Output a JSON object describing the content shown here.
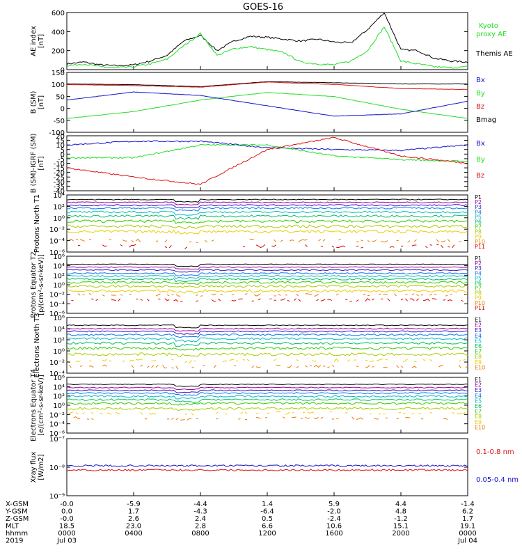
{
  "title": "GOES-16",
  "colors": {
    "black": "#000000",
    "green": "#22dd22",
    "red": "#dd1111",
    "blue": "#1111cc",
    "p": [
      "#000000",
      "#990099",
      "#3311cc",
      "#1177ee",
      "#00bbbb",
      "#00bb66",
      "#33cc00",
      "#aacc00",
      "#eecc00",
      "#ee7700",
      "#dd0000"
    ]
  },
  "x_axis": {
    "hhmm": [
      "0000",
      "0400",
      "0800",
      "1200",
      "1600",
      "2000",
      "0000"
    ],
    "rows": [
      {
        "label": "X-GSM",
        "values": [
          "-0.0",
          "-5.9",
          "-4.4",
          "1.4",
          "5.9",
          "4.4",
          "-1.4"
        ]
      },
      {
        "label": "Y-GSM",
        "values": [
          "0.0",
          "1.7",
          "-4.3",
          "-6.4",
          "-2.0",
          "4.8",
          "6.2"
        ]
      },
      {
        "label": "Z-GSM",
        "values": [
          "-0.0",
          "2.6",
          "2.4",
          "0.5",
          "-2.4",
          "-1.2",
          "1.7"
        ]
      },
      {
        "label": "MLT",
        "values": [
          "18.5",
          "23.0",
          "2.8",
          "6.6",
          "10.6",
          "15.1",
          "19.1"
        ]
      },
      {
        "label": "hhmm",
        "values": [
          "0000",
          "0400",
          "0800",
          "1200",
          "1600",
          "2000",
          "0000"
        ]
      }
    ],
    "year": "2019",
    "start_date": "Jul 03",
    "end_date": "Jul 04"
  },
  "chart_data": [
    {
      "type": "line",
      "ylabel": "AE index [nT]",
      "yticks": [
        "0",
        "200",
        "400",
        "600"
      ],
      "ylim": [
        0,
        600
      ],
      "legend": [
        {
          "name": "Kyoto proxy AE",
          "color": "#22dd22"
        },
        {
          "name": "Themis AE",
          "color": "#000000"
        }
      ],
      "series": [
        {
          "name": "Themis AE",
          "x": [
            0,
            1,
            2,
            3,
            4,
            5,
            6,
            7,
            8,
            9,
            10,
            11,
            12,
            13,
            14,
            15,
            16,
            17,
            18,
            19,
            20,
            21,
            22,
            23,
            24
          ],
          "values": [
            60,
            80,
            50,
            40,
            50,
            90,
            150,
            300,
            360,
            200,
            300,
            350,
            340,
            320,
            300,
            320,
            290,
            280,
            420,
            600,
            210,
            200,
            120,
            90,
            80
          ]
        },
        {
          "name": "Kyoto proxy AE",
          "x": [
            0,
            1,
            2,
            3,
            4,
            5,
            6,
            7,
            8,
            9,
            10,
            11,
            12,
            13,
            14,
            15,
            16,
            17,
            18,
            19,
            20,
            21,
            22,
            23,
            24
          ],
          "values": [
            40,
            60,
            30,
            20,
            30,
            60,
            110,
            250,
            380,
            150,
            220,
            240,
            210,
            180,
            80,
            60,
            50,
            90,
            200,
            450,
            90,
            60,
            30,
            20,
            30
          ]
        }
      ]
    },
    {
      "type": "line",
      "ylabel": "B (SM) [nT]",
      "yticks": [
        "-100",
        "-50",
        "0",
        "50",
        "100",
        "150"
      ],
      "ylim": [
        -110,
        150
      ],
      "legend": [
        {
          "name": "Bx",
          "color": "#1111cc"
        },
        {
          "name": "By",
          "color": "#22dd22"
        },
        {
          "name": "Bz",
          "color": "#dd1111"
        },
        {
          "name": "Bmag",
          "color": "#000000"
        }
      ],
      "series": [
        {
          "name": "Bmag",
          "x": [
            0,
            4,
            8,
            12,
            16,
            20,
            24
          ],
          "values": [
            100,
            97,
            88,
            110,
            105,
            100,
            100
          ]
        },
        {
          "name": "Bz",
          "x": [
            0,
            4,
            8,
            12,
            16,
            20,
            24
          ],
          "values": [
            97,
            93,
            86,
            108,
            98,
            80,
            76
          ]
        },
        {
          "name": "By",
          "x": [
            0,
            4,
            8,
            12,
            16,
            20,
            24
          ],
          "values": [
            -50,
            -20,
            30,
            63,
            45,
            -10,
            -50
          ]
        },
        {
          "name": "Bx",
          "x": [
            0,
            4,
            8,
            12,
            16,
            20,
            24
          ],
          "values": [
            30,
            65,
            50,
            5,
            -40,
            -30,
            25
          ]
        }
      ]
    },
    {
      "type": "line",
      "ylabel": "B (SM)-IGRF (SM) [nT]",
      "yticks": [
        "-40",
        "-35",
        "-30",
        "-25",
        "-20",
        "-15",
        "-10",
        "-5",
        "0",
        "5",
        "10",
        "15",
        "20"
      ],
      "ylim": [
        -40,
        20
      ],
      "legend": [
        {
          "name": "Bx",
          "color": "#1111cc"
        },
        {
          "name": "By",
          "color": "#22dd22"
        },
        {
          "name": "Bz",
          "color": "#dd1111"
        }
      ],
      "series": [
        {
          "name": "Bx",
          "x": [
            0,
            4,
            8,
            12,
            16,
            20,
            24
          ],
          "values": [
            10,
            14,
            14,
            7,
            5,
            4,
            10
          ]
        },
        {
          "name": "By",
          "x": [
            0,
            4,
            8,
            12,
            16,
            20,
            24
          ],
          "values": [
            -4,
            -4,
            10,
            10,
            -2,
            -6,
            -8
          ]
        },
        {
          "name": "Bz",
          "x": [
            0,
            4,
            8,
            12,
            16,
            20,
            24
          ],
          "values": [
            -15,
            -25,
            -33,
            5,
            18,
            -2,
            -10
          ]
        }
      ]
    },
    {
      "type": "line",
      "log": true,
      "ylabel": "Protons North T1",
      "yticks": [
        "10⁻⁶",
        "10⁻⁴",
        "10⁻²",
        "10⁰",
        "10²",
        "10⁴"
      ],
      "ylim": [
        -6,
        4
      ],
      "legend": [
        "P1",
        "P2",
        "P3",
        "P4",
        "P5",
        "P6",
        "P7",
        "P8",
        "P9",
        "P10",
        "P11"
      ],
      "levels": [
        3.2,
        2.7,
        2.2,
        1.7,
        1.0,
        0.3,
        -0.6,
        -1.5,
        -2.4,
        -4.0,
        -5.0
      ]
    },
    {
      "type": "line",
      "log": true,
      "ylabel": "Protons Equator T2 [p/(cm²-s-sr-keV)]",
      "yticks": [
        "10⁻⁶",
        "10⁻⁴",
        "10⁻²",
        "10⁰",
        "10²",
        "10⁴",
        "10⁶"
      ],
      "ylim": [
        -6,
        6
      ],
      "legend": [
        "P1",
        "P2",
        "P3",
        "P4",
        "P5",
        "P6",
        "P7",
        "P8",
        "P9",
        "P10",
        "P11"
      ],
      "levels": [
        4.3,
        3.7,
        3.1,
        2.4,
        1.8,
        1.2,
        0.5,
        -0.3,
        -1.3,
        -2.1,
        -3.2
      ]
    },
    {
      "type": "line",
      "log": true,
      "ylabel": "Electrons North T3",
      "yticks": [
        "10⁻⁴",
        "10⁻²",
        "10⁰",
        "10²",
        "10⁴",
        "10⁶"
      ],
      "ylim": [
        -4,
        6
      ],
      "legend": [
        "E1",
        "E2",
        "E3",
        "E4",
        "E5",
        "E6",
        "E7",
        "E8",
        "E9",
        "E10"
      ],
      "levels": [
        4.6,
        4.0,
        3.5,
        2.9,
        2.2,
        1.4,
        0.5,
        -0.6,
        -1.7,
        -2.8
      ]
    },
    {
      "type": "line",
      "log": true,
      "ylabel": "Electrons Equator T4 [e/(cm²-s-sr-keV)]",
      "yticks": [
        "10⁻⁶",
        "10⁻⁴",
        "10⁻²",
        "10⁰",
        "10²",
        "10⁴",
        "10⁶"
      ],
      "ylim": [
        -6,
        6
      ],
      "legend": [
        "E1",
        "E2",
        "E3",
        "E4",
        "E5",
        "E6",
        "E7",
        "E8",
        "E9",
        "E10"
      ],
      "levels": [
        4.5,
        3.8,
        3.2,
        2.6,
        1.9,
        1.2,
        0.4,
        -0.7,
        -1.7,
        -2.8
      ]
    },
    {
      "type": "line",
      "log": true,
      "ylabel": "Xray flux [W/m2]",
      "yticks": [
        "10⁻⁹",
        "10⁻⁸",
        "10⁻⁷"
      ],
      "ylim": [
        -9,
        -7
      ],
      "legend": [
        {
          "name": "0.1-0.8 nm",
          "color": "#dd1111"
        },
        {
          "name": "0.05-0.4 nm",
          "color": "#1111cc"
        }
      ],
      "series": [
        {
          "name": "0.1-0.8 nm",
          "x": [
            0,
            24
          ],
          "values": [
            -8.1,
            -8.1
          ]
        },
        {
          "name": "0.05-0.4 nm",
          "x": [
            0,
            24
          ],
          "values": [
            -7.95,
            -7.95
          ]
        }
      ]
    }
  ]
}
